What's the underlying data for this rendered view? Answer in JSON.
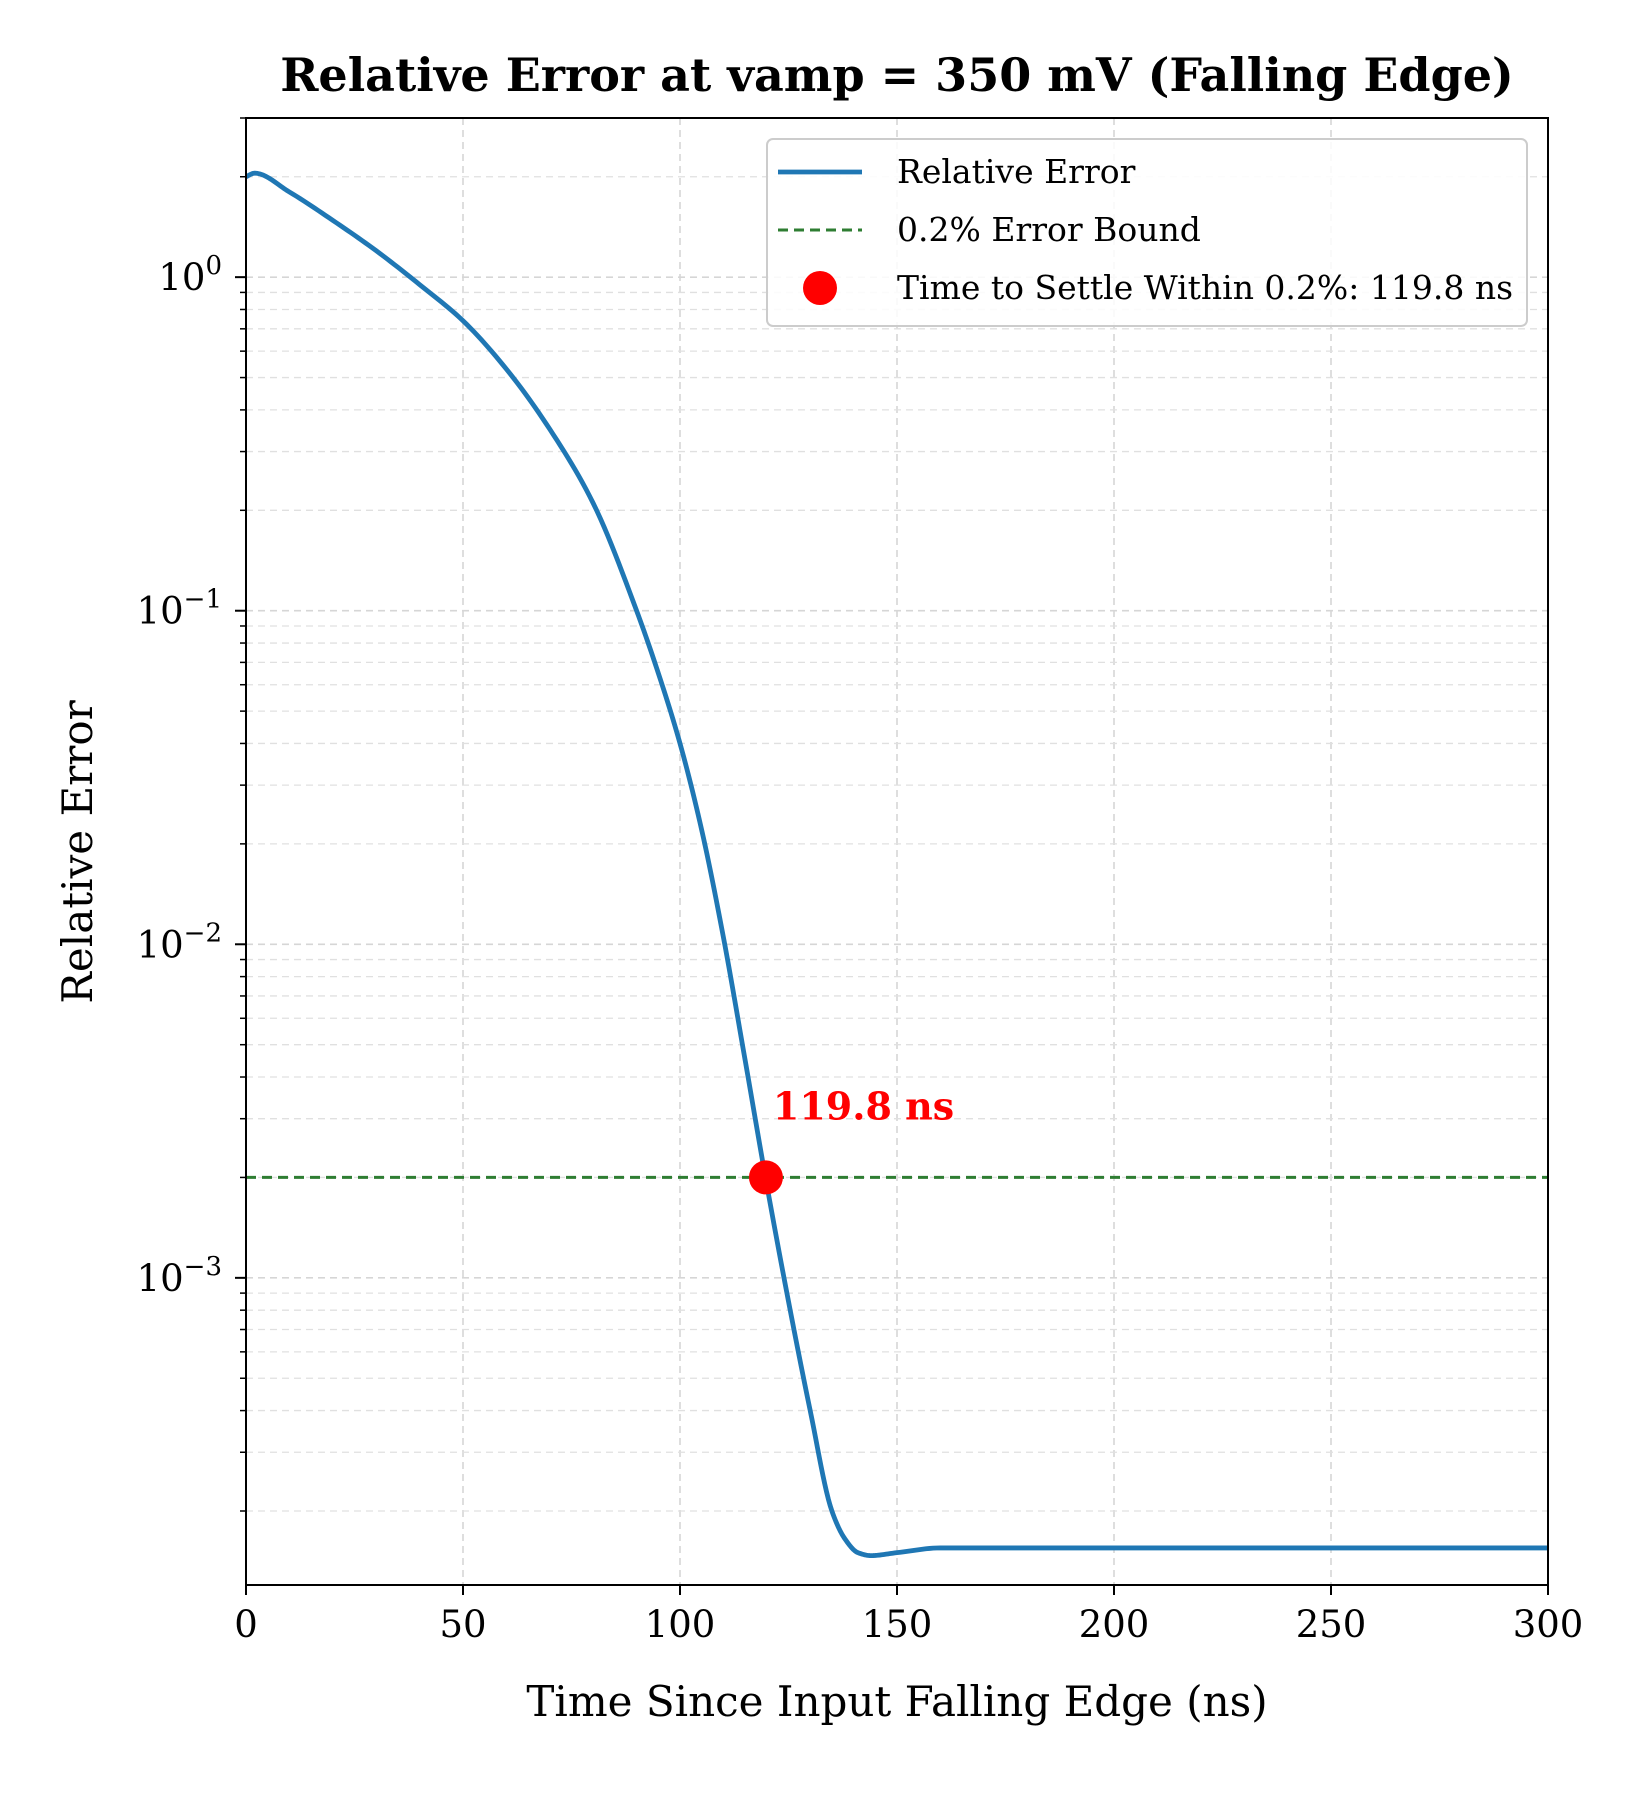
{
  "chart_data": {
    "type": "line",
    "title": "Relative Error at vamp = 350 mV (Falling Edge)",
    "xlabel": "Time Since Input Falling Edge (ns)",
    "ylabel": "Relative Error",
    "xlim": [
      0,
      300
    ],
    "ylim": [
      0.00012,
      3.0
    ],
    "yscale": "log",
    "grid": true,
    "legend_placement": "top-right",
    "x_ticks": [
      0,
      50,
      100,
      150,
      200,
      250,
      300
    ],
    "x_tick_labels": [
      "0",
      "50",
      "100",
      "150",
      "200",
      "250",
      "300"
    ],
    "y_ticks": [
      1,
      0.1,
      0.01,
      0.001
    ],
    "y_tick_labels": [
      {
        "base": "10",
        "exp": "0"
      },
      {
        "base": "10",
        "exp": "−1"
      },
      {
        "base": "10",
        "exp": "−2"
      },
      {
        "base": "10",
        "exp": "−3"
      }
    ],
    "series": [
      {
        "name": "Relative Error",
        "color": "#1f77b4",
        "style": "solid",
        "x": [
          0,
          2,
          10,
          20,
          30,
          40,
          50,
          60,
          70,
          80,
          90,
          95,
          100,
          105,
          110,
          115,
          120,
          125,
          130,
          135,
          138,
          141,
          144,
          150,
          160,
          180,
          200,
          250,
          300
        ],
        "y": [
          2.0,
          2.05,
          1.8,
          1.48,
          1.2,
          0.95,
          0.74,
          0.53,
          0.35,
          0.21,
          0.1,
          0.065,
          0.04,
          0.022,
          0.0105,
          0.0045,
          0.0019,
          0.00085,
          0.0004,
          0.0002,
          0.000165,
          0.00015,
          0.000147,
          0.00015,
          0.000155,
          0.000155,
          0.000155,
          0.000155,
          0.000155
        ]
      },
      {
        "name": "0.2% Error Bound",
        "color": "#2e7d32",
        "style": "dashed",
        "y_constant": 0.002
      }
    ],
    "marker": {
      "name": "Time to Settle Within 0.2%: 119.8 ns",
      "x": 119.8,
      "y": 0.002,
      "color": "#ff0000",
      "annotation": "119.8 ns"
    }
  }
}
